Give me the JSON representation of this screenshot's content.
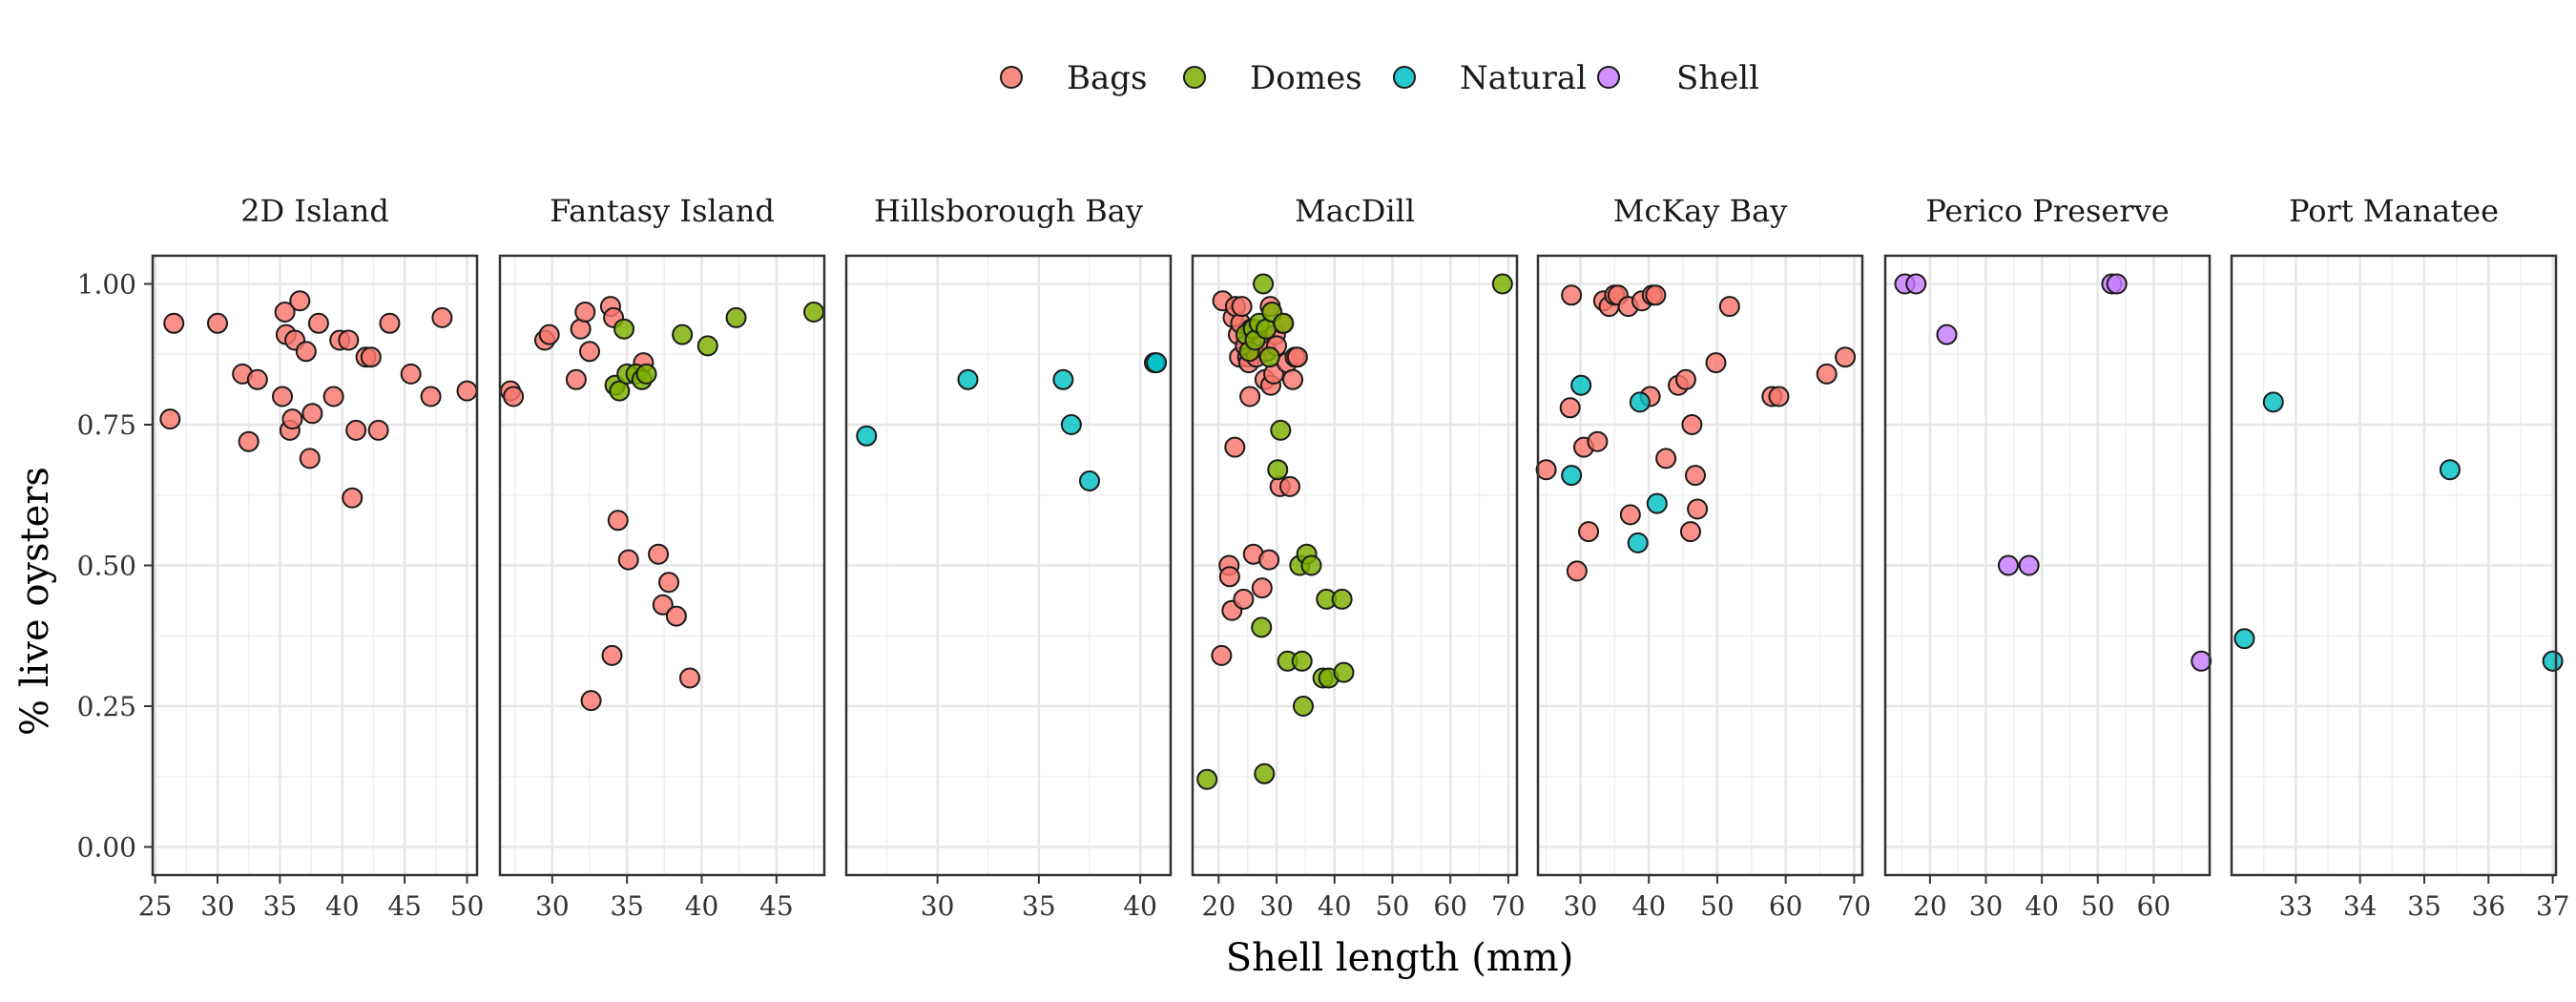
{
  "chart_data": {
    "type": "scatter",
    "xlabel": "Shell length (mm)",
    "ylabel": "% live oysters",
    "legend_position": "top",
    "grid": true,
    "ylim": [
      -0.05,
      1.05
    ],
    "y_ticks": [
      0.0,
      0.25,
      0.5,
      0.75,
      1.0
    ],
    "y_tick_labels": [
      "0.00",
      "0.25",
      "0.50",
      "0.75",
      "1.00"
    ],
    "series": [
      {
        "name": "Bags",
        "color": "#F8766D"
      },
      {
        "name": "Domes",
        "color": "#7CAE00"
      },
      {
        "name": "Natural",
        "color": "#00BFC4"
      },
      {
        "name": "Shell",
        "color": "#C77CFF"
      }
    ],
    "panels": [
      {
        "label": "2D Island",
        "xlim": [
          24.8,
          50.8
        ],
        "x_ticks": [
          25,
          30,
          35,
          40,
          45,
          50
        ],
        "points": [
          [
            "Bags",
            26.2,
            0.76
          ],
          [
            "Bags",
            26.5,
            0.93
          ],
          [
            "Bags",
            30,
            0.93
          ],
          [
            "Bags",
            32,
            0.84
          ],
          [
            "Bags",
            32.5,
            0.72
          ],
          [
            "Bags",
            33.2,
            0.83
          ],
          [
            "Bags",
            35.2,
            0.8
          ],
          [
            "Bags",
            35.4,
            0.95
          ],
          [
            "Bags",
            35.5,
            0.91
          ],
          [
            "Bags",
            35.8,
            0.74
          ],
          [
            "Bags",
            36,
            0.76
          ],
          [
            "Bags",
            36.2,
            0.9
          ],
          [
            "Bags",
            36.6,
            0.97
          ],
          [
            "Bags",
            37.1,
            0.88
          ],
          [
            "Bags",
            37.4,
            0.69
          ],
          [
            "Bags",
            37.6,
            0.77
          ],
          [
            "Bags",
            38.1,
            0.93
          ],
          [
            "Bags",
            39.3,
            0.8
          ],
          [
            "Bags",
            39.8,
            0.9
          ],
          [
            "Bags",
            40.5,
            0.9
          ],
          [
            "Bags",
            40.8,
            0.62
          ],
          [
            "Bags",
            41.1,
            0.74
          ],
          [
            "Bags",
            41.9,
            0.87
          ],
          [
            "Bags",
            42.3,
            0.87
          ],
          [
            "Bags",
            42.9,
            0.74
          ],
          [
            "Bags",
            43.8,
            0.93
          ],
          [
            "Bags",
            45.5,
            0.84
          ],
          [
            "Bags",
            47.1,
            0.8
          ],
          [
            "Bags",
            48,
            0.94
          ],
          [
            "Bags",
            50,
            0.81
          ]
        ]
      },
      {
        "label": "Fantasy Island",
        "xlim": [
          26.5,
          48.2
        ],
        "x_ticks": [
          30,
          35,
          40,
          45
        ],
        "points": [
          [
            "Bags",
            27.2,
            0.81
          ],
          [
            "Bags",
            27.4,
            0.8
          ],
          [
            "Bags",
            29.5,
            0.9
          ],
          [
            "Bags",
            29.8,
            0.91
          ],
          [
            "Bags",
            31.6,
            0.83
          ],
          [
            "Bags",
            31.9,
            0.92
          ],
          [
            "Bags",
            32.2,
            0.95
          ],
          [
            "Bags",
            32.5,
            0.88
          ],
          [
            "Bags",
            32.6,
            0.26
          ],
          [
            "Bags",
            33.9,
            0.96
          ],
          [
            "Bags",
            34,
            0.34
          ],
          [
            "Bags",
            34.1,
            0.94
          ],
          [
            "Bags",
            34.4,
            0.58
          ],
          [
            "Bags",
            35.1,
            0.51
          ],
          [
            "Bags",
            36.1,
            0.86
          ],
          [
            "Bags",
            37.1,
            0.52
          ],
          [
            "Bags",
            37.4,
            0.43
          ],
          [
            "Bags",
            37.8,
            0.47
          ],
          [
            "Bags",
            38.3,
            0.41
          ],
          [
            "Bags",
            39.2,
            0.3
          ],
          [
            "Domes",
            34.2,
            0.82
          ],
          [
            "Domes",
            34.5,
            0.81
          ],
          [
            "Domes",
            35,
            0.84
          ],
          [
            "Domes",
            34.8,
            0.92
          ],
          [
            "Domes",
            35.6,
            0.84
          ],
          [
            "Domes",
            36,
            0.83
          ],
          [
            "Domes",
            36.3,
            0.84
          ],
          [
            "Domes",
            38.7,
            0.91
          ],
          [
            "Domes",
            40.4,
            0.89
          ],
          [
            "Domes",
            42.3,
            0.94
          ],
          [
            "Domes",
            47.5,
            0.95
          ]
        ]
      },
      {
        "label": "Hillsborough Bay",
        "xlim": [
          25.5,
          41.5
        ],
        "x_ticks": [
          30,
          35,
          40
        ],
        "points": [
          [
            "Natural",
            26.5,
            0.73
          ],
          [
            "Natural",
            31.5,
            0.83
          ],
          [
            "Natural",
            36.2,
            0.83
          ],
          [
            "Natural",
            36.6,
            0.75
          ],
          [
            "Natural",
            37.5,
            0.65
          ],
          [
            "Natural",
            40.7,
            0.86
          ],
          [
            "Natural",
            40.8,
            0.86
          ]
        ]
      },
      {
        "label": "MacDill",
        "xlim": [
          15.5,
          71.5
        ],
        "x_ticks": [
          20,
          30,
          40,
          50,
          60,
          70
        ],
        "points": [
          [
            "Bags",
            20.5,
            0.34
          ],
          [
            "Bags",
            20.7,
            0.97
          ],
          [
            "Bags",
            21.8,
            0.5
          ],
          [
            "Bags",
            21.9,
            0.48
          ],
          [
            "Bags",
            22.3,
            0.42
          ],
          [
            "Bags",
            22.8,
            0.71
          ],
          [
            "Bags",
            22.5,
            0.94
          ],
          [
            "Bags",
            22.9,
            0.96
          ],
          [
            "Bags",
            23.4,
            0.91
          ],
          [
            "Bags",
            23.6,
            0.87
          ],
          [
            "Bags",
            23.8,
            0.93
          ],
          [
            "Bags",
            24,
            0.96
          ],
          [
            "Bags",
            24.3,
            0.44
          ],
          [
            "Bags",
            24.6,
            0.89
          ],
          [
            "Bags",
            25,
            0.87
          ],
          [
            "Bags",
            25.2,
            0.86
          ],
          [
            "Bags",
            25.4,
            0.8
          ],
          [
            "Bags",
            25.6,
            0.92
          ],
          [
            "Bags",
            26,
            0.52
          ],
          [
            "Bags",
            26.5,
            0.87
          ],
          [
            "Bags",
            27,
            0.9
          ],
          [
            "Bags",
            27.5,
            0.46
          ],
          [
            "Bags",
            28,
            0.83
          ],
          [
            "Bags",
            28.3,
            0.88
          ],
          [
            "Bags",
            28.7,
            0.51
          ],
          [
            "Bags",
            28.9,
            0.96
          ],
          [
            "Bags",
            29,
            0.82
          ],
          [
            "Bags",
            29.5,
            0.84
          ],
          [
            "Bags",
            29.8,
            0.91
          ],
          [
            "Bags",
            30,
            0.89
          ],
          [
            "Bags",
            30.6,
            0.64
          ],
          [
            "Bags",
            31,
            0.93
          ],
          [
            "Bags",
            31.8,
            0.86
          ],
          [
            "Bags",
            32.3,
            0.64
          ],
          [
            "Bags",
            32.8,
            0.83
          ],
          [
            "Bags",
            33.2,
            0.87
          ],
          [
            "Bags",
            33.6,
            0.87
          ],
          [
            "Domes",
            18,
            0.12
          ],
          [
            "Domes",
            24.7,
            0.91
          ],
          [
            "Domes",
            25.3,
            0.88
          ],
          [
            "Domes",
            26,
            0.92
          ],
          [
            "Domes",
            26.3,
            0.9
          ],
          [
            "Domes",
            27,
            0.93
          ],
          [
            "Domes",
            27.4,
            0.39
          ],
          [
            "Domes",
            27.7,
            1.0
          ],
          [
            "Domes",
            27.9,
            0.13
          ],
          [
            "Domes",
            28.2,
            0.92
          ],
          [
            "Domes",
            28.8,
            0.87
          ],
          [
            "Domes",
            29.2,
            0.95
          ],
          [
            "Domes",
            30.2,
            0.67
          ],
          [
            "Domes",
            30.7,
            0.74
          ],
          [
            "Domes",
            31.2,
            0.93
          ],
          [
            "Domes",
            31.9,
            0.33
          ],
          [
            "Domes",
            34,
            0.5
          ],
          [
            "Domes",
            34.4,
            0.33
          ],
          [
            "Domes",
            34.6,
            0.25
          ],
          [
            "Domes",
            35.2,
            0.52
          ],
          [
            "Domes",
            36,
            0.5
          ],
          [
            "Domes",
            38,
            0.3
          ],
          [
            "Domes",
            38.6,
            0.44
          ],
          [
            "Domes",
            39,
            0.3
          ],
          [
            "Domes",
            41.3,
            0.44
          ],
          [
            "Domes",
            41.6,
            0.31
          ],
          [
            "Domes",
            69,
            1.0
          ]
        ]
      },
      {
        "label": "McKay Bay",
        "xlim": [
          23.8,
          71.2
        ],
        "x_ticks": [
          30,
          40,
          50,
          60,
          70
        ],
        "points": [
          [
            "Bags",
            25,
            0.67
          ],
          [
            "Bags",
            28.5,
            0.78
          ],
          [
            "Bags",
            28.7,
            0.98
          ],
          [
            "Bags",
            29.5,
            0.49
          ],
          [
            "Bags",
            30.5,
            0.71
          ],
          [
            "Bags",
            31.2,
            0.56
          ],
          [
            "Bags",
            32.5,
            0.72
          ],
          [
            "Bags",
            33.4,
            0.97
          ],
          [
            "Bags",
            34.2,
            0.96
          ],
          [
            "Bags",
            35,
            0.98
          ],
          [
            "Bags",
            35.5,
            0.98
          ],
          [
            "Bags",
            37,
            0.96
          ],
          [
            "Bags",
            37.3,
            0.59
          ],
          [
            "Bags",
            39,
            0.97
          ],
          [
            "Bags",
            40.2,
            0.8
          ],
          [
            "Bags",
            40.5,
            0.98
          ],
          [
            "Bags",
            41,
            0.98
          ],
          [
            "Bags",
            42.5,
            0.69
          ],
          [
            "Bags",
            44.3,
            0.82
          ],
          [
            "Bags",
            45.4,
            0.83
          ],
          [
            "Bags",
            46.1,
            0.56
          ],
          [
            "Bags",
            46.3,
            0.75
          ],
          [
            "Bags",
            46.8,
            0.66
          ],
          [
            "Bags",
            47.1,
            0.6
          ],
          [
            "Bags",
            49.8,
            0.86
          ],
          [
            "Bags",
            51.8,
            0.96
          ],
          [
            "Bags",
            58,
            0.8
          ],
          [
            "Bags",
            59,
            0.8
          ],
          [
            "Bags",
            66,
            0.84
          ],
          [
            "Bags",
            68.7,
            0.87
          ],
          [
            "Natural",
            28.7,
            0.66
          ],
          [
            "Natural",
            30.1,
            0.82
          ],
          [
            "Natural",
            38.4,
            0.54
          ],
          [
            "Natural",
            38.7,
            0.79
          ],
          [
            "Natural",
            41.2,
            0.61
          ]
        ]
      },
      {
        "label": "Perico Preserve",
        "xlim": [
          12,
          70
        ],
        "x_ticks": [
          20,
          30,
          40,
          50,
          60
        ],
        "points": [
          [
            "Shell",
            15.5,
            1.0
          ],
          [
            "Shell",
            17.5,
            1.0
          ],
          [
            "Shell",
            23,
            0.91
          ],
          [
            "Shell",
            34,
            0.5
          ],
          [
            "Shell",
            37.7,
            0.5
          ],
          [
            "Shell",
            52.5,
            1.0
          ],
          [
            "Shell",
            53.4,
            1.0
          ],
          [
            "Shell",
            68.5,
            0.33
          ]
        ]
      },
      {
        "label": "Port Manatee",
        "xlim": [
          32.0,
          37.05
        ],
        "x_ticks": [
          33,
          34,
          35,
          36,
          37
        ],
        "points": [
          [
            "Natural",
            32.2,
            0.37
          ],
          [
            "Natural",
            32.65,
            0.79
          ],
          [
            "Natural",
            35.4,
            0.67
          ],
          [
            "Natural",
            37.0,
            0.33
          ]
        ]
      }
    ]
  }
}
